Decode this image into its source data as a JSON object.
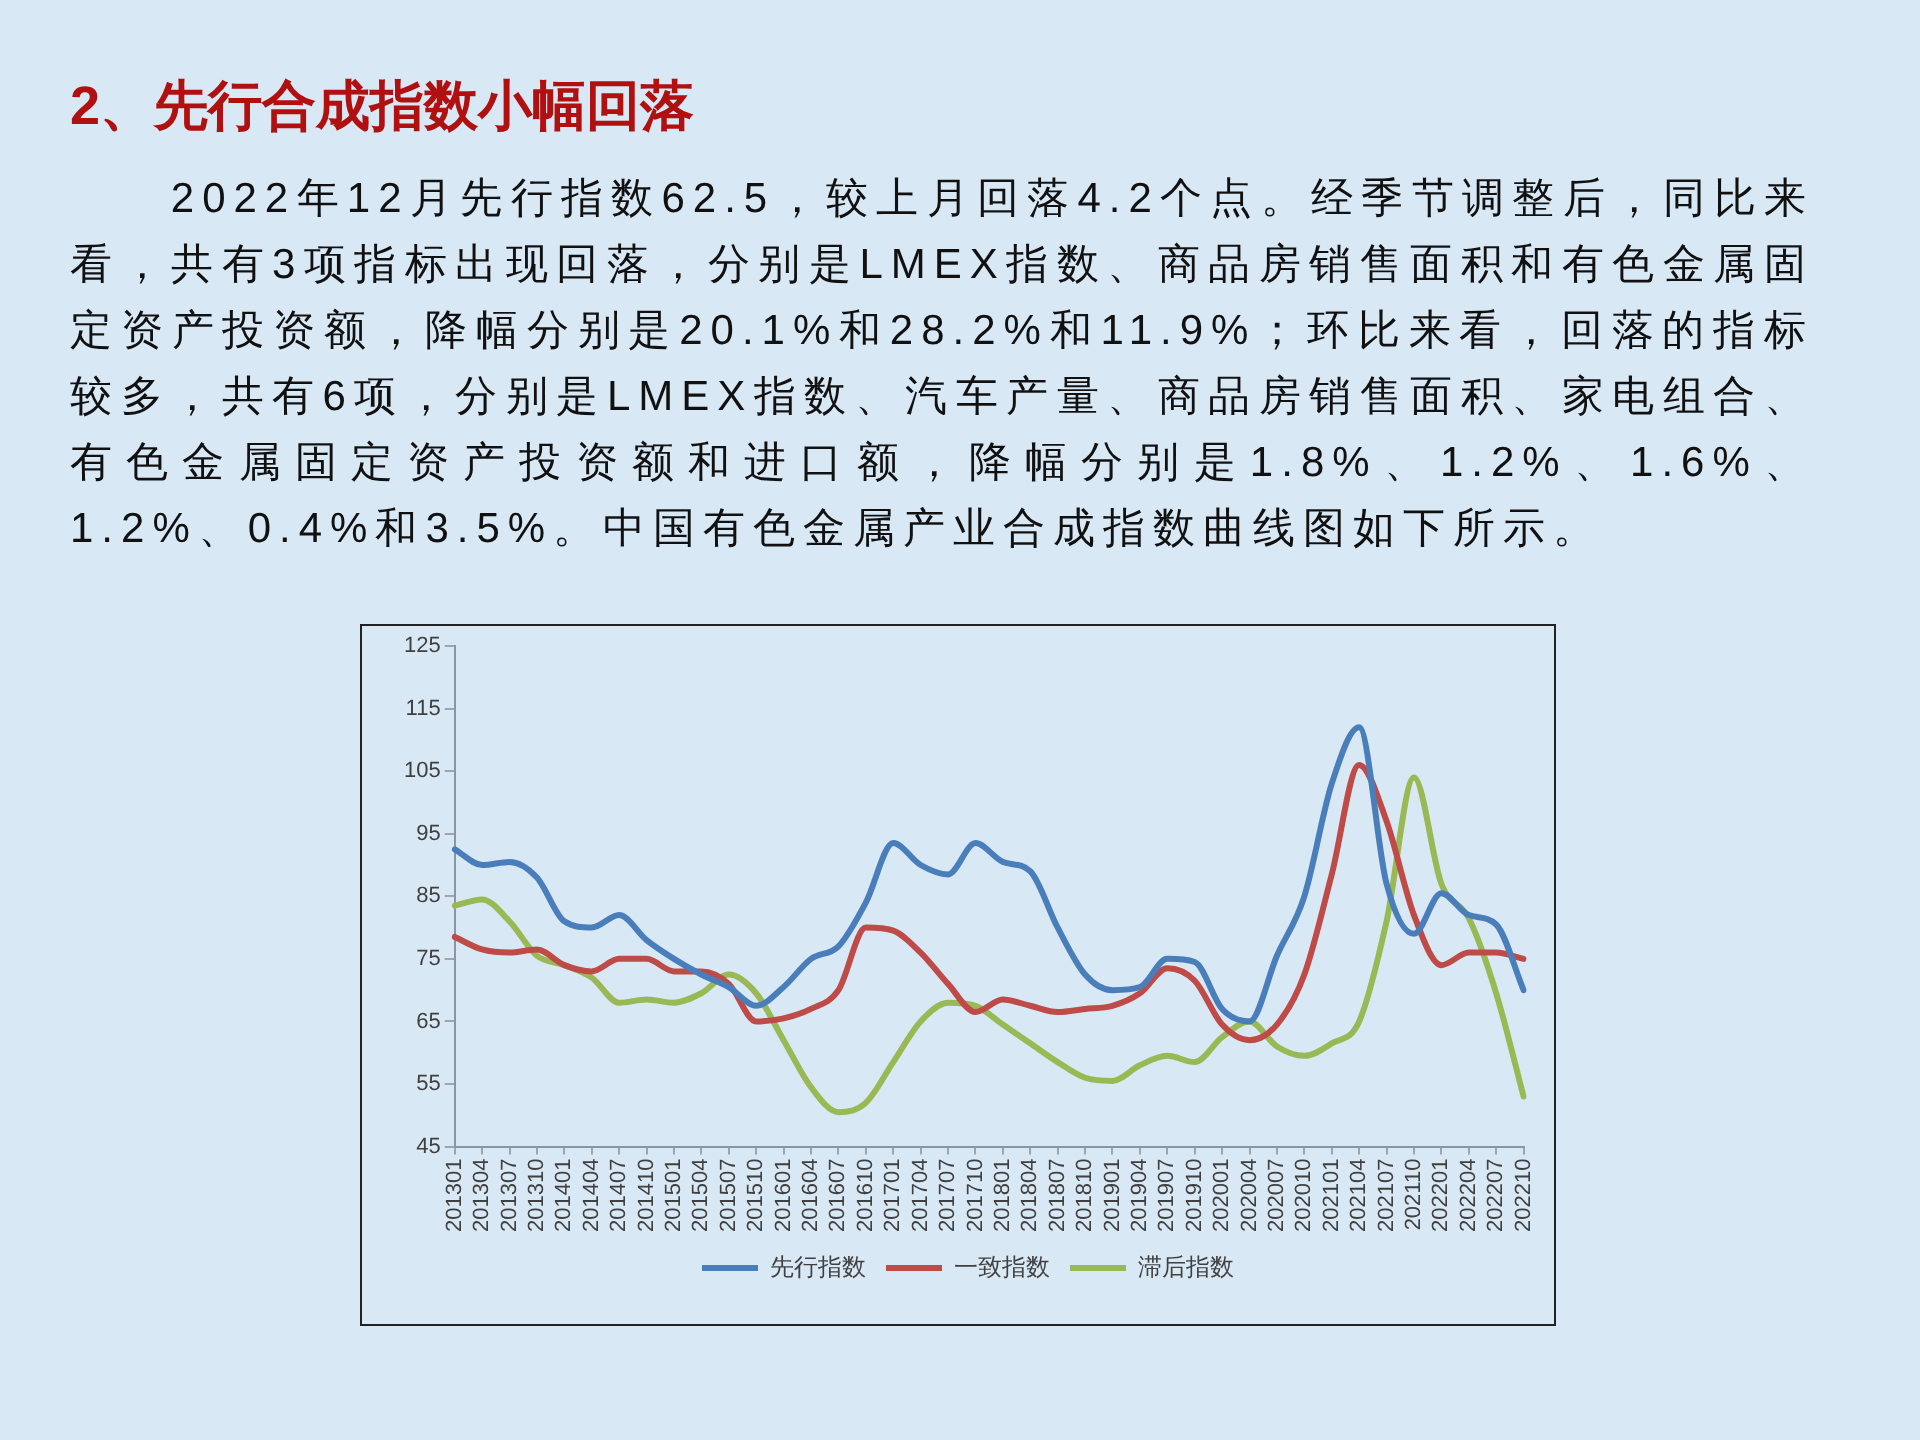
{
  "chart_data": {
    "type": "line",
    "title": "2、先行合成指数小幅回落",
    "subtitle": "2022年12月先行指数62.5，较上月回落4.2个点。经季节调整后，同比来看，共有3项指标出现回落，分别是LMEX指数、商品房销售面积和有色金属固定资产投资额，降幅分别是20.1%和28.2%和11.9%；环比来看，回落的指标较多，共有6项，分别是LMEX指数、汽车产量、商品房销售面积、家电组合、有色金属固定资产投资额和进口额，降幅分别是1.8%、1.2%、1.6%、1.2%、0.4%和3.5%。中国有色金属产业合成指数曲线图如下所示。",
    "categories": [
      "201301",
      "201304",
      "201307",
      "201310",
      "201401",
      "201404",
      "201407",
      "201410",
      "201501",
      "201504",
      "201507",
      "201510",
      "201601",
      "201604",
      "201607",
      "201610",
      "201701",
      "201704",
      "201707",
      "201710",
      "201801",
      "201804",
      "201807",
      "201810",
      "201901",
      "201904",
      "201907",
      "201910",
      "202001",
      "202004",
      "202007",
      "202010",
      "202101",
      "202104",
      "202107",
      "202110",
      "202201",
      "202204",
      "202207",
      "202210"
    ],
    "series": [
      {
        "name": "先行指数",
        "color": "#4a7ebb",
        "values": [
          92.5,
          90,
          90.5,
          88,
          81,
          80,
          82,
          78,
          75,
          72.5,
          70.5,
          67.5,
          70.5,
          75,
          77,
          84,
          93.5,
          90,
          88.5,
          93.5,
          90.5,
          89,
          80,
          72.5,
          70,
          70.5,
          75,
          74.5,
          67,
          65,
          75.5,
          85,
          103,
          112,
          87,
          79,
          85.5,
          82,
          80.5,
          70
        ]
      },
      {
        "name": "一致指数",
        "color": "#be4b48",
        "values": [
          78.5,
          76.5,
          76,
          76.5,
          74,
          73,
          75,
          75,
          73,
          73,
          71,
          65,
          65.5,
          67,
          70,
          80,
          79.5,
          76,
          71,
          66.5,
          68.5,
          67.5,
          66.5,
          67,
          67.5,
          69.5,
          73.5,
          71.5,
          64.5,
          62,
          64.5,
          72.5,
          88.5,
          106,
          97,
          82,
          74,
          76,
          76,
          75
        ]
      },
      {
        "name": "滞后指数",
        "color": "#98b954",
        "values": [
          83.5,
          84.5,
          81,
          75.5,
          74,
          72,
          68,
          68.5,
          68,
          69.5,
          72.5,
          69.5,
          62,
          54.5,
          50.5,
          52,
          58.5,
          65,
          68,
          67.5,
          64.5,
          61.5,
          58.5,
          56,
          55.5,
          58,
          59.5,
          58.5,
          62.5,
          65,
          61,
          59.5,
          61.5,
          65,
          81,
          104,
          87,
          81.5,
          69.5,
          53
        ]
      }
    ],
    "ylim": [
      45,
      125
    ],
    "yticks": [
      45,
      55,
      65,
      75,
      85,
      95,
      105,
      115,
      125
    ],
    "grid": false,
    "legend": "bottom",
    "marker": "none",
    "line_style": "solid"
  }
}
